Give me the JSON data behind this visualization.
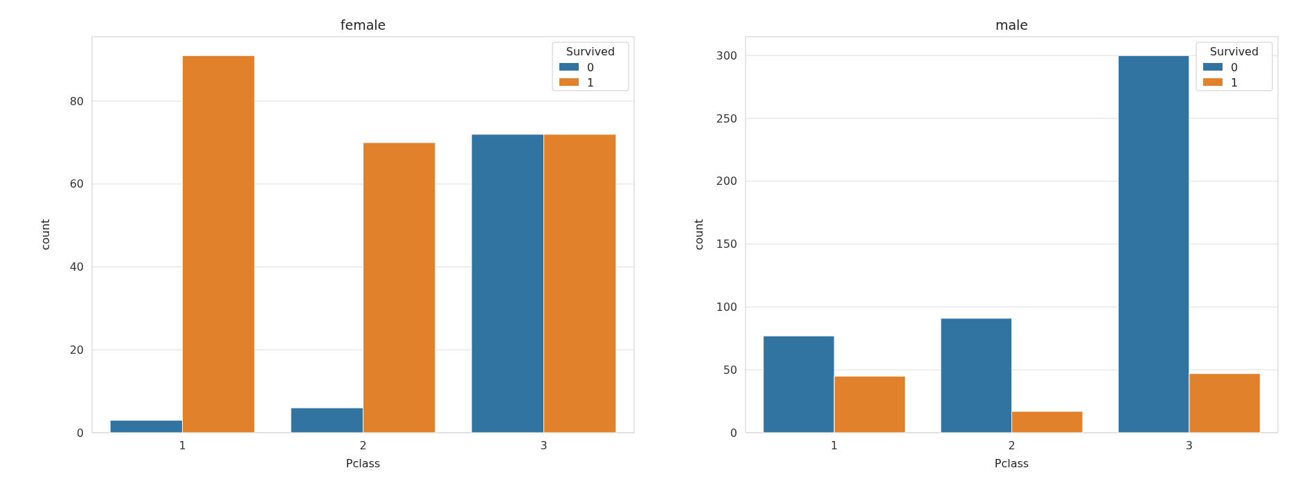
{
  "chart_data": [
    {
      "type": "bar",
      "title": "female",
      "xlabel": "Pclass",
      "ylabel": "count",
      "categories": [
        "1",
        "2",
        "3"
      ],
      "series": [
        {
          "name": "0",
          "color": "#3274a1",
          "values": [
            3,
            6,
            72
          ]
        },
        {
          "name": "1",
          "color": "#e1812c",
          "values": [
            91,
            70,
            72
          ]
        }
      ],
      "ylim": [
        0,
        95.55
      ],
      "yticks": [
        0,
        20,
        40,
        60,
        80
      ],
      "grid": "y",
      "legend": "top right",
      "legend_title": "Survived"
    },
    {
      "type": "bar",
      "title": "male",
      "xlabel": "Pclass",
      "ylabel": "count",
      "categories": [
        "1",
        "2",
        "3"
      ],
      "series": [
        {
          "name": "0",
          "color": "#3274a1",
          "values": [
            77,
            91,
            300
          ]
        },
        {
          "name": "1",
          "color": "#e1812c",
          "values": [
            45,
            17,
            47
          ]
        }
      ],
      "ylim": [
        0,
        315
      ],
      "yticks": [
        0,
        50,
        100,
        150,
        200,
        250,
        300
      ],
      "grid": "y",
      "legend": "top right",
      "legend_title": "Survived"
    }
  ]
}
